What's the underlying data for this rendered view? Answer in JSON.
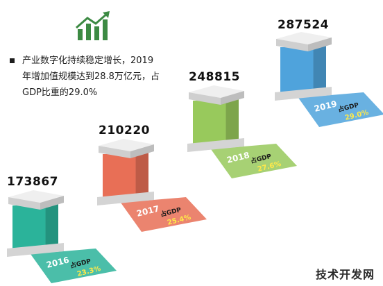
{
  "description": {
    "lines": [
      "产业数字化持续稳定增长，2019",
      "年增加值规模达到28.8万亿元，占",
      "GDP比重的29.0%"
    ]
  },
  "icon": "growth-bar-chart-icon",
  "watermark": "技术开发网",
  "colors": {
    "bar_2016": "#2bb39a",
    "bar_2017": "#e86f56",
    "bar_2018": "#98c95c",
    "bar_2019": "#4fa3dc",
    "cap": "#d9d9d9",
    "icon": "#3c8a43"
  },
  "chart_data": {
    "type": "bar",
    "categories": [
      "2016",
      "2017",
      "2018",
      "2019"
    ],
    "values": [
      173867,
      210220,
      248815,
      287524
    ],
    "value_labels": [
      "173867",
      "210220",
      "248815",
      "287524"
    ],
    "gdp_share_label": "占GDP",
    "gdp_share": [
      "23.3%",
      "25.4%",
      "27.6%",
      "29.0%"
    ],
    "title": "",
    "xlabel": "",
    "ylabel": ""
  }
}
